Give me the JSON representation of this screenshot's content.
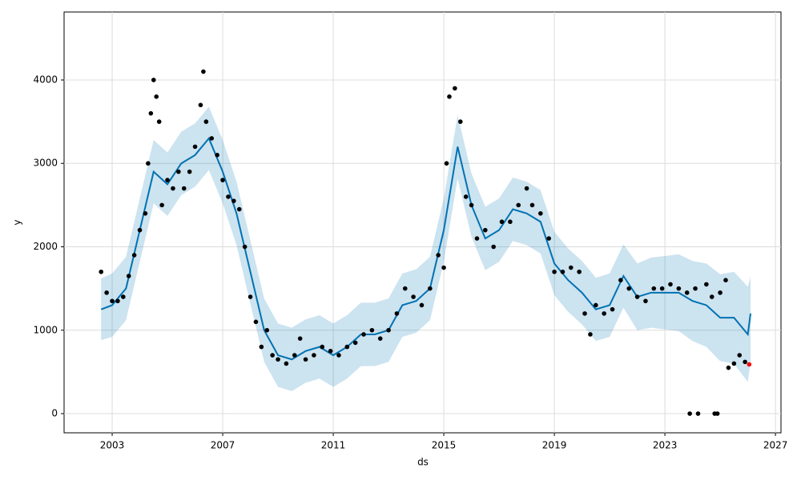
{
  "chart_data": {
    "type": "line",
    "x_label": "ds",
    "y_label": "y",
    "xlim": [
      2001.26,
      2027.2
    ],
    "xticks": [
      2003,
      2007,
      2011,
      2015,
      2019,
      2023,
      2027
    ],
    "ylim": [
      -230,
      4815
    ],
    "yticks": [
      0,
      1000,
      2000,
      3000,
      4000
    ],
    "grid": true,
    "series": [
      {
        "type": "band",
        "color": "#0072B2",
        "x": [
          2002.6,
          2003.0,
          2003.5,
          2004.0,
          2004.5,
          2005.0,
          2005.5,
          2006.0,
          2006.5,
          2007.0,
          2007.5,
          2008.0,
          2008.5,
          2009.0,
          2009.5,
          2010.0,
          2010.5,
          2011.0,
          2011.5,
          2012.0,
          2012.5,
          2013.0,
          2013.5,
          2014.0,
          2014.5,
          2015.0,
          2015.5,
          2016.0,
          2016.5,
          2017.0,
          2017.5,
          2018.0,
          2018.5,
          2019.0,
          2019.5,
          2020.0,
          2020.5,
          2021.0,
          2021.5,
          2022.0,
          2022.5,
          2023.0,
          2023.5,
          2024.0,
          2024.5,
          2025.0,
          2025.5,
          2026.0,
          2026.1
        ],
        "values": [
          1250,
          1300,
          1500,
          2200,
          2900,
          2750,
          3000,
          3100,
          3300,
          2900,
          2400,
          1700,
          1000,
          700,
          650,
          750,
          800,
          700,
          800,
          950,
          950,
          1000,
          1300,
          1350,
          1500,
          2200,
          3200,
          2500,
          2100,
          2200,
          2450,
          2400,
          2300,
          1800,
          1600,
          1450,
          1250,
          1300,
          1650,
          1400,
          1450,
          1450,
          1450,
          1350,
          1300,
          1150,
          1150,
          950,
          1200
        ],
        "lower": [
          880,
          920,
          1120,
          1820,
          2520,
          2370,
          2620,
          2720,
          2920,
          2520,
          2020,
          1320,
          620,
          320,
          270,
          370,
          420,
          320,
          420,
          570,
          570,
          620,
          920,
          970,
          1120,
          1820,
          2820,
          2120,
          1720,
          1820,
          2070,
          2020,
          1920,
          1420,
          1220,
          1070,
          870,
          920,
          1270,
          1000,
          1030,
          1010,
          990,
          870,
          800,
          630,
          600,
          380,
          620
        ],
        "upper": [
          1620,
          1680,
          1880,
          2580,
          3280,
          3130,
          3380,
          3480,
          3680,
          3280,
          2780,
          2080,
          1380,
          1080,
          1030,
          1130,
          1180,
          1080,
          1180,
          1330,
          1330,
          1380,
          1680,
          1730,
          1880,
          2580,
          3580,
          2880,
          2480,
          2580,
          2830,
          2780,
          2680,
          2180,
          1980,
          1830,
          1630,
          1680,
          2030,
          1800,
          1870,
          1890,
          1910,
          1830,
          1800,
          1670,
          1700,
          1520,
          1640
        ]
      },
      {
        "type": "scatter",
        "color": "#000000",
        "x": [
          2002.6,
          2002.8,
          2003.0,
          2003.2,
          2003.4,
          2003.6,
          2003.8,
          2004.0,
          2004.2,
          2004.3,
          2004.4,
          2004.5,
          2004.6,
          2004.7,
          2004.8,
          2005.0,
          2005.2,
          2005.4,
          2005.6,
          2005.8,
          2006.0,
          2006.2,
          2006.3,
          2006.4,
          2006.6,
          2006.8,
          2007.0,
          2007.2,
          2007.4,
          2007.6,
          2007.8,
          2008.0,
          2008.2,
          2008.4,
          2008.6,
          2008.8,
          2009.0,
          2009.3,
          2009.6,
          2009.8,
          2010.0,
          2010.3,
          2010.6,
          2010.9,
          2011.2,
          2011.5,
          2011.8,
          2012.1,
          2012.4,
          2012.7,
          2013.0,
          2013.3,
          2013.6,
          2013.9,
          2014.2,
          2014.5,
          2014.8,
          2015.0,
          2015.1,
          2015.2,
          2015.4,
          2015.6,
          2015.8,
          2016.0,
          2016.2,
          2016.5,
          2016.8,
          2017.1,
          2017.4,
          2017.7,
          2018.0,
          2018.2,
          2018.5,
          2018.8,
          2019.0,
          2019.3,
          2019.6,
          2019.9,
          2020.1,
          2020.3,
          2020.5,
          2020.8,
          2021.1,
          2021.4,
          2021.7,
          2022.0,
          2022.3,
          2022.6,
          2022.9,
          2023.2,
          2023.5,
          2023.8,
          2023.9,
          2024.1,
          2024.2,
          2024.5,
          2024.7,
          2024.8,
          2024.9,
          2025.0,
          2025.2,
          2025.3,
          2025.5,
          2025.7,
          2025.9
        ],
        "values": [
          1700,
          1450,
          1350,
          1350,
          1400,
          1650,
          1900,
          2200,
          2400,
          3000,
          3600,
          4000,
          3800,
          3500,
          2500,
          2800,
          2700,
          2900,
          2700,
          2900,
          3200,
          3700,
          4100,
          3500,
          3300,
          3100,
          2800,
          2600,
          2550,
          2450,
          2000,
          1400,
          1100,
          800,
          1000,
          700,
          650,
          600,
          700,
          900,
          650,
          700,
          800,
          750,
          700,
          800,
          850,
          950,
          1000,
          900,
          1000,
          1200,
          1500,
          1400,
          1300,
          1500,
          1900,
          1750,
          3000,
          3800,
          3900,
          3500,
          2600,
          2500,
          2100,
          2200,
          2000,
          2300,
          2300,
          2500,
          2700,
          2500,
          2400,
          2100,
          1700,
          1700,
          1750,
          1700,
          1200,
          950,
          1300,
          1200,
          1250,
          1600,
          1500,
          1400,
          1350,
          1500,
          1500,
          1550,
          1500,
          1450,
          0,
          1500,
          0,
          1550,
          1400,
          0,
          0,
          1450,
          1600,
          550,
          600,
          700,
          620
        ]
      },
      {
        "type": "scatter",
        "color": "#ff0000",
        "x": [
          2026.05
        ],
        "values": [
          590
        ]
      }
    ]
  }
}
